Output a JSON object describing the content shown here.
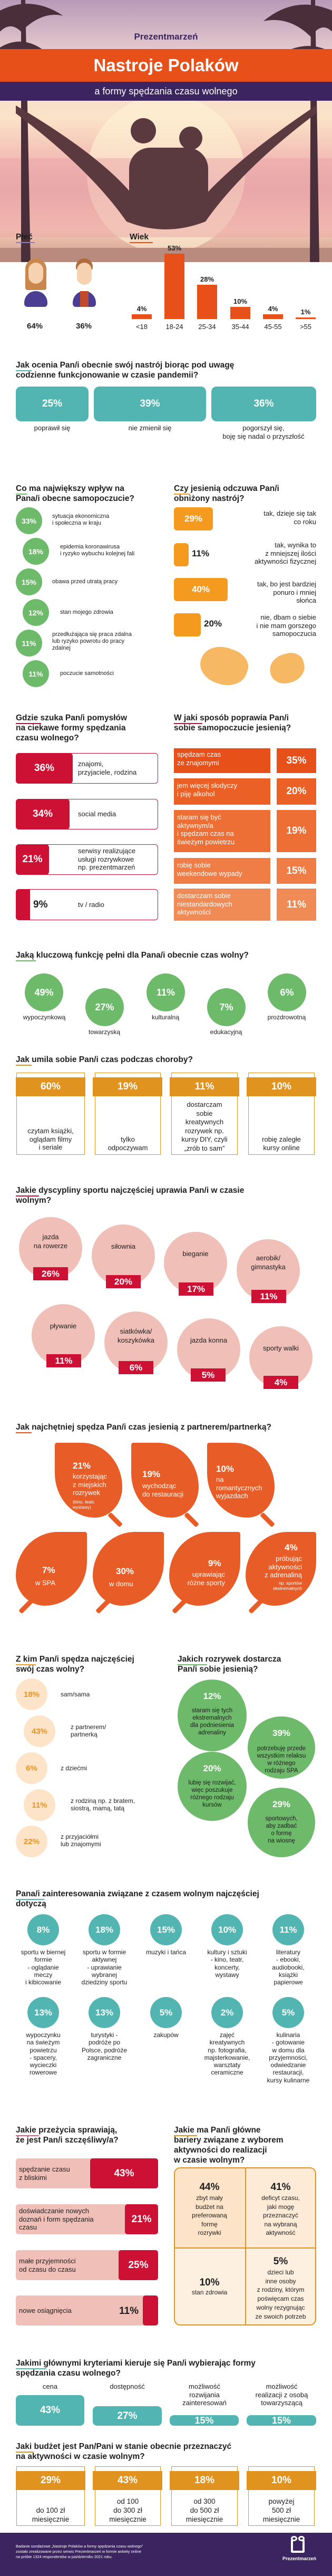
{
  "header": {
    "logo": "Prezentmarzeń",
    "title": "Nastroje Polaków",
    "subtitle": "a formy spędzania czasu wolnego"
  },
  "demographics": {
    "gender_title": "Płeć",
    "gender": [
      {
        "label": "kobiety",
        "value": "64%"
      },
      {
        "label": "mężczyźni",
        "value": "36%"
      }
    ],
    "age_title": "Wiek",
    "age": [
      {
        "range": "<18",
        "value": 4,
        "label": "4%"
      },
      {
        "range": "18-24",
        "value": 53,
        "label": "53%"
      },
      {
        "range": "25-34",
        "value": 28,
        "label": "28%"
      },
      {
        "range": "35-44",
        "value": 10,
        "label": "10%"
      },
      {
        "range": "45-55",
        "value": 4,
        "label": "4%"
      },
      {
        "range": ">55",
        "value": 1,
        "label": "1%"
      }
    ]
  },
  "mood": {
    "question": "Jak ocenia Pan/i obecnie swój nastrój biorąc pod uwagę\ncodzienne funkcjonowanie w czasie pandemii?",
    "items": [
      {
        "pct": "25%",
        "label": "poprawił się"
      },
      {
        "pct": "39%",
        "label": "nie zmienił się"
      },
      {
        "pct": "36%",
        "label": "pogorszył się,\nboję się nadal o przyszłość"
      }
    ]
  },
  "influence": {
    "question": "Co ma największy wpływ na\nPana/i obecne samopoczucie?",
    "items": [
      {
        "pct": "33%",
        "label": "sytuacja ekonomiczna\ni społeczna w kraju"
      },
      {
        "pct": "18%",
        "label": "epidemia koronawirusa\ni ryzyko wybuchu kolejnej fali"
      },
      {
        "pct": "15%",
        "label": "obawa przed utratą pracy"
      },
      {
        "pct": "12%",
        "label": "stan mojego zdrowia"
      },
      {
        "pct": "11%",
        "label": "przedłużająca się praca zdalna\nlub ryzyko powrotu do pracy\nzdalnej"
      },
      {
        "pct": "11%",
        "label": "poczucie samotności"
      }
    ]
  },
  "autumn": {
    "question": "Czy jesienią odczuwa Pan/i\nobniżony nastrój?",
    "items": [
      {
        "pct": "29%",
        "value": 29,
        "label": "tak, dzieje się tak\nco roku"
      },
      {
        "pct": "11%",
        "value": 11,
        "label": "tak, wynika to\nz mniejszej ilości\naktywności fizycznej"
      },
      {
        "pct": "40%",
        "value": 40,
        "label": "tak, bo jest bardziej\nponuro i mniej\nsłońca"
      },
      {
        "pct": "20%",
        "value": 20,
        "label": "nie, dbam o siebie\ni nie mam gorszego\nsamopoczucia"
      }
    ]
  },
  "ideas": {
    "question": "Gdzie szuka Pan/i pomysłów\nna ciekawe formy spędzania\nczasu wolnego?",
    "items": [
      {
        "pct": "36%",
        "label": "znajomi,\nprzyjaciele, rodzina"
      },
      {
        "pct": "34%",
        "label": "social media"
      },
      {
        "pct": "21%",
        "label": "serwisy realizujące\nusługi rozrywkowe\nnp. prezentmarzeń"
      },
      {
        "pct": "9%",
        "label": "tv / radio"
      }
    ]
  },
  "improve": {
    "question": "W jaki sposób poprawia Pan/i\nsobie samopoczucie jesienią?",
    "items": [
      {
        "pct": "35%",
        "label": "spędzam czas\nze znajomymi"
      },
      {
        "pct": "20%",
        "label": "jem więcej słodyczy\ni piję alkohol"
      },
      {
        "pct": "19%",
        "label": "staram się być\naktywnym/a\ni spędzam czas na\nświeżym powietrzu"
      },
      {
        "pct": "15%",
        "label": "robię sobie\nweekendowe wypady"
      },
      {
        "pct": "11%",
        "label": "dostarczam sobie\nniestandardowych\naktywności"
      }
    ]
  },
  "function": {
    "question": "Jaką kluczową funkcję pełni dla Pana/i obecnie czas wolny?",
    "items": [
      {
        "pct": "49%",
        "label": "wypoczynkową"
      },
      {
        "pct": "27%",
        "label": "towarzyską"
      },
      {
        "pct": "11%",
        "label": "kulturalną"
      },
      {
        "pct": "7%",
        "label": "edukacyjną"
      },
      {
        "pct": "6%",
        "label": "prozdrowotną"
      }
    ]
  },
  "sickness": {
    "question": "Jak umila sobie Pan/i czas podczas choroby?",
    "items": [
      {
        "pct": "60%",
        "label": "czytam książki,\noglądam filmy\ni seriale"
      },
      {
        "pct": "19%",
        "label": "tylko\nodpoczywam"
      },
      {
        "pct": "11%",
        "label": "dostarczam\nsobie\nkreatywnych\nrozrywek np.\nkursy DIY, czyli\n„zrób to sam”"
      },
      {
        "pct": "10%",
        "label": "robię zaległe\nkursy online"
      }
    ]
  },
  "sports": {
    "question": "Jakie dyscypliny sportu najczęściej uprawia Pan/i w czasie\nwolnym?",
    "items": [
      {
        "pct": "26%",
        "label": "jazda\nna rowerze"
      },
      {
        "pct": "20%",
        "label": "siłownia"
      },
      {
        "pct": "17%",
        "label": "bieganie"
      },
      {
        "pct": "11%",
        "label": "aerobik/\ngimnastyka"
      },
      {
        "pct": "11%",
        "label": "pływanie"
      },
      {
        "pct": "6%",
        "label": "siatkówka/\nkoszykówka"
      },
      {
        "pct": "5%",
        "label": "jazda konna"
      },
      {
        "pct": "4%",
        "label": "sporty walki"
      }
    ]
  },
  "partner": {
    "question": "Jak najchętniej spędza Pan/i czas jesienią z partnerem/partnerką?",
    "items": [
      {
        "pct": "21%",
        "label": "korzystając\nz miejskich\nrozrywek",
        "note": "(kino, teatr,\nwystawy)"
      },
      {
        "pct": "19%",
        "label": "wychodząc\ndo restauracji",
        "note": ""
      },
      {
        "pct": "10%",
        "label": "na\nromantycznych\nwyjazdach",
        "note": ""
      },
      {
        "pct": "7%",
        "label": "w SPA",
        "note": ""
      },
      {
        "pct": "30%",
        "label": "w domu",
        "note": ""
      },
      {
        "pct": "9%",
        "label": "uprawiając\nróżne sporty",
        "note": ""
      },
      {
        "pct": "4%",
        "label": "próbując\naktywności\nz adrenaliną",
        "note": "np. sportów\nekstremalnych"
      }
    ]
  },
  "company": {
    "question": "Z kim Pan/i spędza najczęściej\nswój czas wolny?",
    "items": [
      {
        "pct": "18%",
        "label": "sam/sama"
      },
      {
        "pct": "43%",
        "label": "z partnerem/\npartnerką"
      },
      {
        "pct": "6%",
        "label": "z dziećmi"
      },
      {
        "pct": "11%",
        "label": "z rodziną np. z bratem,\nsiostrą, mamą, tatą"
      },
      {
        "pct": "22%",
        "label": "z przyjaciółmi\nlub znajomymi"
      }
    ]
  },
  "entertainment": {
    "question": "Jakich rozrywek dostarcza\nPan/i sobie jesienią?",
    "items": [
      {
        "pct": "12%",
        "label": "staram się tych\nekstremalnych\ndla podniesienia\nadrenaliny"
      },
      {
        "pct": "39%",
        "label": "potrzebuję przede\nwszystkim relaksu\nw różnego\nrodzaju SPA"
      },
      {
        "pct": "20%",
        "label": "lubię się rozwijać,\nwięc poszukuje\nróżnego rodzaju\nkursów"
      },
      {
        "pct": "29%",
        "label": "sportowych,\naby zadbać\no formę\nna wiosnę"
      }
    ]
  },
  "interests": {
    "question": "Pana/i zainteresowania związane z czasem wolnym najczęściej\ndotyczą",
    "items": [
      {
        "pct": "8%",
        "label": "sportu w biernej\nformie\n- oglądanie\nmeczy\ni kibicowanie"
      },
      {
        "pct": "18%",
        "label": "sportu w formie\naktywnej\n- uprawianie\nwybranej\ndziedziny sportu"
      },
      {
        "pct": "15%",
        "label": "muzyki i tańca"
      },
      {
        "pct": "10%",
        "label": "kultury i sztuki\n- kino, teatr,\nkoncerty,\nwystawy"
      },
      {
        "pct": "11%",
        "label": "literatury\n- ebooki,\naudiobooki,\nksiążki\npapierowe"
      },
      {
        "pct": "13%",
        "label": "wypoczynku\nna świeżym\npowietrzu\n- spacery,\nwycieczki\nrowerowe"
      },
      {
        "pct": "13%",
        "label": "turystyki -\npodróże po\nPolsce, podróże\nzagraniczne"
      },
      {
        "pct": "5%",
        "label": "zakupów"
      },
      {
        "pct": "2%",
        "label": "zajęć\nkreatywnych\nnp. fotografia,\nmajsterkowanie,\nwarsztaty\nceramiczne"
      },
      {
        "pct": "5%",
        "label": "kulinaria\n- gotowanie\nw domu dla\nprzyjemności,\nodwiedzanie\nrestauracji,\nkursy kulinarne"
      }
    ]
  },
  "happiness": {
    "question": "Jakie przeżycia sprawiają,\nże jest Pan/i szczęśliwy/a?",
    "items": [
      {
        "pct": "43%",
        "label": "spędzanie czasu\nz bliskimi"
      },
      {
        "pct": "21%",
        "label": "doświadczanie nowych\ndoznań i form spędzania\nczasu"
      },
      {
        "pct": "25%",
        "label": "małe przyjemności\nod czasu do czasu"
      },
      {
        "pct": "11%",
        "label": "nowe osiągnięcia"
      }
    ]
  },
  "barriers": {
    "question": "Jakie ma Pan/i główne\nbariery związane z wyborem\naktywności do realizacji\nw czasie wolnym?",
    "items": [
      {
        "pct": "44%",
        "label": "zbyt mały\nbudżet na\npreferowaną\nformę\nrozrywki"
      },
      {
        "pct": "41%",
        "label": "deficyt czasu,\njaki mogę\nprzeznaczyć\nna wybraną\naktywność"
      },
      {
        "pct": "10%",
        "label": "stan zdrowia"
      },
      {
        "pct": "5%",
        "label": "dzieci lub\ninne osoby\nz rodziny, którym\npoświęcam czas\nwolny rezygnując\nze swoich potrzeb"
      }
    ]
  },
  "criteria": {
    "question": "Jakimi głównymi kryteriami kieruje się Pan/i wybierając formy\nspędzania czasu wolnego?",
    "items": [
      {
        "pct": "43%",
        "value": 43,
        "label": "cena"
      },
      {
        "pct": "27%",
        "value": 27,
        "label": "dostępność"
      },
      {
        "pct": "15%",
        "value": 15,
        "label": "możliwość\nrozwijania\nzainteresowań"
      },
      {
        "pct": "15%",
        "value": 15,
        "label": "możliwość\nrealizacji z osobą\ntowarzyszącą"
      }
    ]
  },
  "budget": {
    "question": "Jaki budżet jest Pan/Pani w stanie obecnie przeznaczyć\nna aktywności w czasie wolnym?",
    "items": [
      {
        "pct": "29%",
        "label": "do 100 zł\nmiesięcznie"
      },
      {
        "pct": "43%",
        "label": "od 100\ndo 300 zł\nmiesięcznie"
      },
      {
        "pct": "18%",
        "label": "od 300\ndo 500 zł\nmiesięcznie"
      },
      {
        "pct": "10%",
        "label": "powyżej\n500 zł\nmiesięcznie"
      }
    ]
  },
  "footer": {
    "text": "Badanie sondażowe „Nastroje Polaków a formy spędzania czasu wolnego”\nzostało zrealizowane przez serwis Prezentmarzeń w formie ankiety online\nna próbie 1324 respondentów w październiku 2021 roku.",
    "logo": "Prezentmarzeń"
  },
  "colors": {
    "orange": "#e8501a",
    "purple": "#3b2460",
    "teal": "#52b5b2",
    "green": "#6dba6a",
    "amber": "#f39a1f",
    "crimson": "#cc1134",
    "pink": "#f0c0b8",
    "gold": "#e0931f",
    "leaf": "#e85d27",
    "peach": "#fde3c8"
  }
}
